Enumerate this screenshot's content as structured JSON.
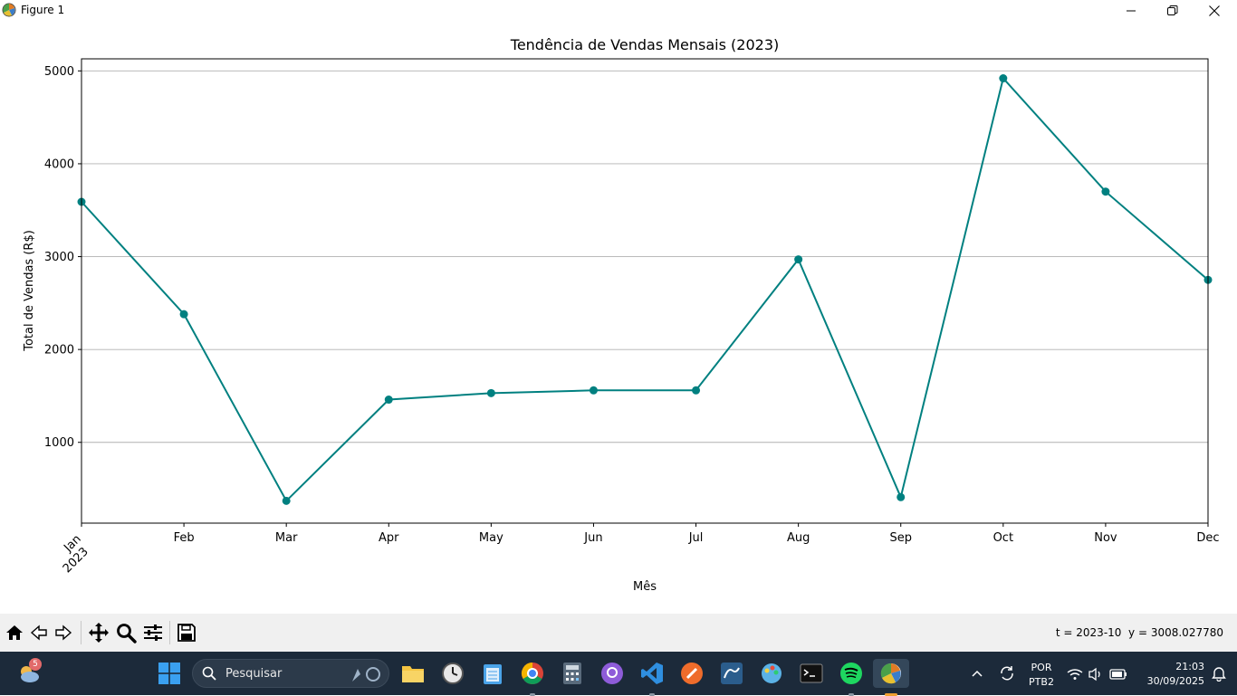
{
  "window": {
    "title": "Figure 1"
  },
  "chart_data": {
    "type": "line",
    "title": "Tendência de Vendas Mensais (2023)",
    "xlabel": "Mês",
    "ylabel": "Total de Vendas (R$)",
    "categories": [
      "Jan",
      "Feb",
      "Mar",
      "Apr",
      "May",
      "Jun",
      "Jul",
      "Aug",
      "Sep",
      "Oct",
      "Nov",
      "Dec"
    ],
    "first_tick_year": "2023",
    "values": [
      3590,
      2380,
      370,
      1460,
      1530,
      1560,
      1560,
      2970,
      410,
      4920,
      3700,
      2750
    ],
    "ylim": [
      130,
      5130
    ],
    "yticks": [
      1000,
      2000,
      3000,
      4000,
      5000
    ],
    "yticklabels": [
      "1000",
      "2000",
      "3000",
      "4000",
      "5000"
    ],
    "grid": "y",
    "line_color": "#008080",
    "marker": "circle"
  },
  "toolbar": {
    "icons": [
      "home-icon",
      "back-icon",
      "forward-icon",
      "pan-icon",
      "zoom-icon",
      "configure-icon",
      "save-icon"
    ],
    "coords": "t = 2023-10  y = 3008.027780"
  },
  "taskbar": {
    "weather_badge": "5",
    "search_placeholder": "Pesquisar",
    "language_top": "POR",
    "language_bottom": "PTB2",
    "time": "21:03",
    "date": "30/09/2025"
  }
}
